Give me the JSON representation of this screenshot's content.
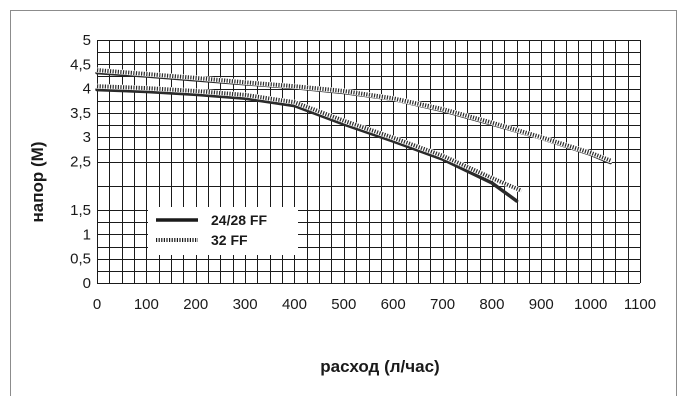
{
  "chart_data": {
    "type": "line",
    "title": "",
    "xlabel": "расход (л/час)",
    "ylabel": "напор (М)",
    "xlim": [
      0,
      1100
    ],
    "ylim": [
      0,
      5
    ],
    "xticks": [
      0,
      100,
      200,
      300,
      400,
      500,
      600,
      700,
      800,
      900,
      1000,
      1100
    ],
    "xtick_labels": [
      "0",
      "100",
      "200",
      "300",
      "400",
      "500",
      "600",
      "700",
      "800",
      "900",
      "1000",
      "1100"
    ],
    "yticks": [
      0,
      0.5,
      1,
      1.5,
      2.5,
      3,
      3.5,
      4,
      4.5,
      5
    ],
    "ytick_labels": [
      "0",
      "0,5",
      "1",
      "1,5",
      "2,5",
      "3",
      "3,5",
      "4",
      "4,5",
      "5"
    ],
    "grid": true,
    "legend_position": "left",
    "legend": [
      {
        "label": "24/28 FF",
        "style": "solid"
      },
      {
        "label": "32 FF",
        "style": "dotted"
      }
    ],
    "series": [
      {
        "name": "24/28 FF",
        "style": "solid",
        "color": "#2a2a2a",
        "points": [
          [
            0,
            4.33
          ],
          [
            100,
            4.26
          ],
          [
            200,
            4.18
          ],
          [
            300,
            4.1
          ],
          [
            400,
            4.02
          ],
          [
            500,
            3.92
          ],
          [
            600,
            3.78
          ],
          [
            700,
            3.55
          ],
          [
            800,
            3.27
          ],
          [
            900,
            2.98
          ],
          [
            1000,
            2.65
          ],
          [
            1040,
            2.48
          ]
        ]
      },
      {
        "name": "32 FF",
        "style": "dotted",
        "color": "#2a2a2a",
        "points": [
          [
            0,
            4.38
          ],
          [
            100,
            4.3
          ],
          [
            200,
            4.22
          ],
          [
            300,
            4.13
          ],
          [
            400,
            4.05
          ],
          [
            500,
            3.95
          ],
          [
            600,
            3.8
          ],
          [
            700,
            3.58
          ],
          [
            800,
            3.3
          ],
          [
            900,
            3.0
          ],
          [
            1000,
            2.68
          ],
          [
            1040,
            2.52
          ]
        ]
      },
      {
        "name": "24/28 FF",
        "style": "solid",
        "color": "#2a2a2a",
        "points": [
          [
            0,
            3.98
          ],
          [
            100,
            3.94
          ],
          [
            200,
            3.88
          ],
          [
            300,
            3.8
          ],
          [
            400,
            3.65
          ],
          [
            500,
            3.27
          ],
          [
            600,
            2.92
          ],
          [
            700,
            2.55
          ],
          [
            800,
            2.06
          ],
          [
            850,
            1.69
          ]
        ]
      },
      {
        "name": "32 FF",
        "style": "dotted",
        "color": "#2a2a2a",
        "points": [
          [
            0,
            4.05
          ],
          [
            100,
            4.01
          ],
          [
            200,
            3.95
          ],
          [
            300,
            3.87
          ],
          [
            400,
            3.72
          ],
          [
            500,
            3.34
          ],
          [
            600,
            2.99
          ],
          [
            700,
            2.62
          ],
          [
            800,
            2.16
          ],
          [
            860,
            1.9
          ]
        ]
      }
    ]
  }
}
